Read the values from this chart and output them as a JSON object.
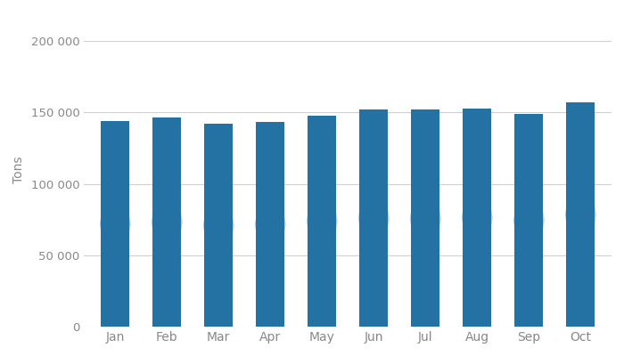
{
  "categories": [
    "Jan",
    "Feb",
    "Mar",
    "Apr",
    "May",
    "Jun",
    "Jul",
    "Aug",
    "Sep",
    "Oct"
  ],
  "values": [
    144000,
    146500,
    142000,
    143500,
    148000,
    152000,
    151800,
    152800,
    149000,
    157000
  ],
  "bar_color": "#2472a4",
  "ylabel": "Tons",
  "ylim": [
    0,
    220000
  ],
  "yticks": [
    0,
    50000,
    100000,
    150000,
    200000
  ],
  "ytick_labels": [
    "0",
    "50 000",
    "100 000",
    "150 000",
    "200 000"
  ],
  "background_color": "#ffffff",
  "grid_color": "#d0d0d0",
  "watermark_color": "#7aaecb",
  "bar_width": 0.55,
  "figsize": [
    7.0,
    4.0
  ],
  "dpi": 100
}
